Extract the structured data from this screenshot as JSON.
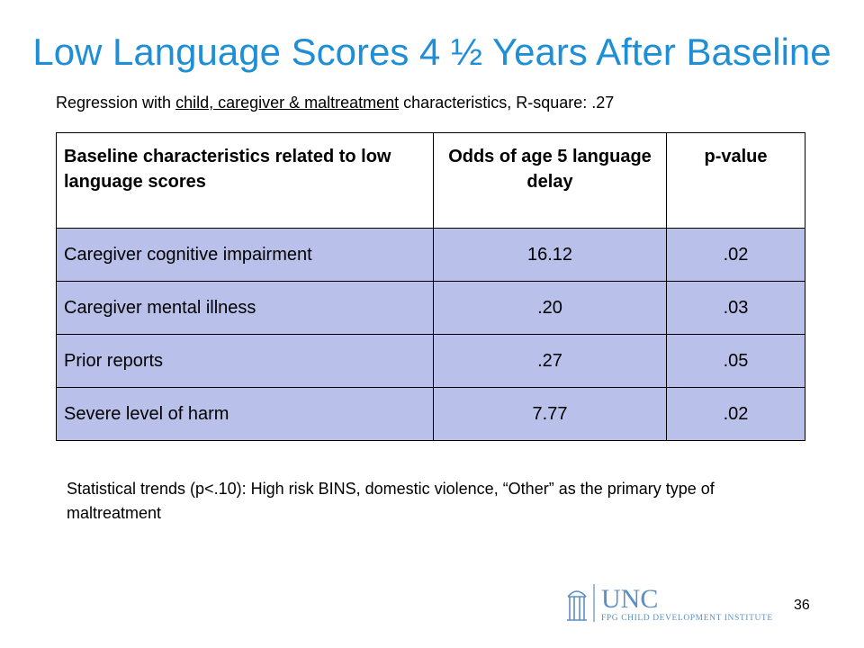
{
  "title": "Low Language Scores 4 ½ Years After Baseline",
  "subtitle": {
    "prefix": "Regression with ",
    "underlined": "child, caregiver & maltreatment",
    "suffix": " characteristics, R-square:  .27"
  },
  "table": {
    "headers": [
      "Baseline characteristics related to low language scores",
      "Odds of age 5 language delay",
      "p-value"
    ],
    "rows": [
      [
        "Caregiver cognitive impairment",
        "16.12",
        ".02"
      ],
      [
        "Caregiver mental illness",
        ".20",
        ".03"
      ],
      [
        "Prior reports",
        ".27",
        ".05"
      ],
      [
        "Severe level of harm",
        "7.77",
        ".02"
      ]
    ]
  },
  "trends": "Statistical trends (p<.10): High risk BINS, domestic violence, “Other” as the primary type of maltreatment",
  "logo": {
    "name": "UNC",
    "subtitle": "FPG CHILD DEVELOPMENT INSTITUTE",
    "icon": "old-well-icon",
    "color": "#5b8fc4"
  },
  "page_number": "36",
  "colors": {
    "title": "#1e8fd6",
    "row_fill": "#b9c1ea"
  }
}
